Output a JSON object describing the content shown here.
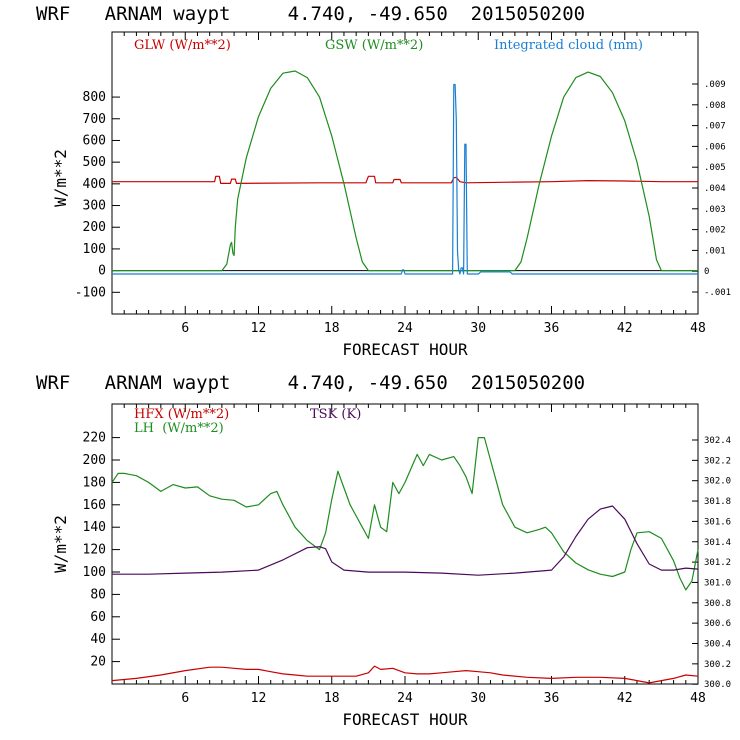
{
  "chart_data": [
    {
      "type": "line",
      "title": "WRF   ARNAM waypt     4.740, -49.650  2015050200",
      "xlabel": "FORECAST HOUR",
      "ylabel": "W/m**2",
      "xlim": [
        0,
        48
      ],
      "ylim": [
        -200,
        1100
      ],
      "x_ticks": [
        6,
        12,
        18,
        24,
        30,
        36,
        42,
        48
      ],
      "y_ticks": [
        -100,
        0,
        100,
        200,
        300,
        400,
        500,
        600,
        700,
        800
      ],
      "y2_ticks": [
        ".009",
        ".008",
        ".007",
        ".006",
        ".005",
        ".004",
        ".003",
        ".002",
        ".001",
        "0",
        "-.001"
      ],
      "series": [
        {
          "name": "GLW (W/m**2)",
          "color": "#c80000",
          "axis": "left",
          "x": [
            0,
            8.4,
            8.5,
            8.8,
            8.9,
            9.7,
            9.8,
            10.1,
            10.2,
            17,
            20.8,
            21,
            21.5,
            21.6,
            23,
            23.1,
            23.6,
            23.7,
            27.8,
            28,
            28.2,
            28.5,
            29,
            33,
            36,
            39,
            42,
            45,
            48
          ],
          "y": [
            410,
            410,
            435,
            435,
            402,
            402,
            422,
            422,
            402,
            405,
            405,
            435,
            435,
            405,
            405,
            420,
            420,
            405,
            405,
            428,
            430,
            410,
            405,
            408,
            410,
            415,
            413,
            410,
            410
          ]
        },
        {
          "name": "GSW (W/m**2)",
          "color": "#1e8c1e",
          "axis": "left",
          "x": [
            0,
            9,
            9.4,
            9.7,
            9.8,
            9.9,
            10,
            10.1,
            10.3,
            11,
            12,
            13,
            14,
            15,
            16,
            17,
            18,
            19,
            20,
            20.5,
            21,
            33,
            33.5,
            34,
            35,
            36,
            37,
            38,
            39,
            40,
            41,
            42,
            43,
            44,
            44.6,
            45,
            48
          ],
          "y": [
            0,
            0,
            30,
            120,
            130,
            80,
            70,
            200,
            330,
            520,
            710,
            840,
            910,
            920,
            890,
            800,
            620,
            400,
            150,
            40,
            0,
            0,
            40,
            150,
            400,
            620,
            800,
            890,
            915,
            895,
            820,
            690,
            500,
            250,
            50,
            0,
            0
          ]
        },
        {
          "name": "Integrated cloud (mm)",
          "color": "#1a7fd4",
          "axis": "right",
          "x": [
            0,
            23.7,
            23.8,
            23.9,
            24,
            27.9,
            28,
            28.1,
            28.2,
            28.3,
            28.4,
            28.5,
            28.6,
            28.7,
            28.8,
            28.9,
            29,
            29.1,
            29.2,
            29.3,
            29.5,
            30,
            30.2,
            32.6,
            32.8,
            48
          ],
          "y": [
            0,
            0,
            0.0002,
            0.0002,
            0,
            0,
            0.0092,
            0.0092,
            0.0075,
            0.0011,
            0.0002,
            0.0,
            0.0003,
            0.0003,
            0,
            0.0063,
            0.0063,
            0,
            0,
            0,
            0,
            0,
            0.0001,
            0.0001,
            0,
            0
          ]
        }
      ]
    },
    {
      "type": "line",
      "title": "WRF   ARNAM waypt     4.740, -49.650  2015050200",
      "xlabel": "FORECAST HOUR",
      "ylabel": "W/m**2",
      "xlim": [
        0,
        48
      ],
      "ylim": [
        0,
        250
      ],
      "x_ticks": [
        6,
        12,
        18,
        24,
        30,
        36,
        42,
        48
      ],
      "y_ticks": [
        20,
        40,
        60,
        80,
        100,
        120,
        140,
        160,
        180,
        200,
        220
      ],
      "y2_ticks": [
        "302.4",
        "302.2",
        "302.0",
        "301.8",
        "301.6",
        "301.4",
        "301.2",
        "301.0",
        "300.8",
        "300.6",
        "300.4",
        "300.2",
        "300.0"
      ],
      "series": [
        {
          "name": "HFX (W/m**2)",
          "color": "#c80000",
          "axis": "left",
          "x": [
            0,
            2,
            4,
            6,
            8,
            9,
            10,
            11,
            12,
            13,
            14,
            15,
            16,
            18,
            20,
            21,
            21.5,
            22,
            23,
            24,
            25,
            26,
            27,
            28,
            29,
            30,
            31,
            32,
            34,
            36,
            38,
            40,
            42,
            43,
            44,
            46,
            47,
            48
          ],
          "y": [
            3,
            5,
            8,
            12,
            15,
            15,
            14,
            13,
            13,
            11,
            9,
            8,
            7,
            7,
            7,
            10,
            16,
            13,
            14,
            10,
            9,
            9,
            10,
            11,
            12,
            11,
            10,
            8,
            6,
            5,
            6,
            6,
            5,
            3,
            1,
            5,
            8,
            7
          ]
        },
        {
          "name": "LH  (W/m**2)",
          "color": "#1e8c1e",
          "axis": "left",
          "x": [
            0,
            0.5,
            1,
            2,
            3,
            4,
            5,
            6,
            7,
            8,
            9,
            10,
            11,
            12,
            13,
            13.5,
            14,
            15,
            16,
            17,
            17.5,
            18,
            18.5,
            19,
            19.5,
            20,
            20.5,
            21,
            21.5,
            22,
            22.5,
            23,
            23.5,
            24,
            25,
            25.5,
            26,
            27,
            28,
            28.5,
            29,
            29.5,
            30,
            30.5,
            31,
            32,
            33,
            34,
            35,
            35.5,
            36,
            37,
            38,
            39,
            40,
            41,
            42,
            42.5,
            43,
            44,
            45,
            46,
            46.5,
            47,
            47.5,
            48
          ],
          "y": [
            180,
            188,
            188,
            186,
            180,
            172,
            178,
            175,
            176,
            168,
            165,
            164,
            158,
            160,
            170,
            172,
            160,
            140,
            128,
            120,
            135,
            165,
            190,
            175,
            160,
            150,
            140,
            130,
            160,
            140,
            136,
            180,
            170,
            180,
            205,
            195,
            205,
            200,
            203,
            195,
            185,
            170,
            220,
            220,
            200,
            160,
            140,
            135,
            138,
            140,
            135,
            118,
            108,
            102,
            98,
            96,
            100,
            120,
            135,
            136,
            130,
            110,
            95,
            84,
            92,
            120
          ]
        },
        {
          "name": "TSK (K)",
          "color": "#4a0a5a",
          "axis": "right",
          "x": [
            0,
            3,
            6,
            9,
            12,
            14,
            16,
            17,
            17.5,
            18,
            19,
            21,
            24,
            27,
            30,
            33,
            36,
            37,
            38,
            39,
            40,
            41,
            42,
            43,
            44,
            45,
            46,
            47,
            48
          ],
          "y": [
            301.08,
            301.08,
            301.09,
            301.1,
            301.12,
            301.22,
            301.34,
            301.35,
            301.33,
            301.2,
            301.12,
            301.1,
            301.1,
            301.09,
            301.07,
            301.09,
            301.12,
            301.25,
            301.45,
            301.62,
            301.72,
            301.75,
            301.62,
            301.38,
            301.18,
            301.12,
            301.12,
            301.14,
            301.13
          ]
        }
      ]
    }
  ],
  "legend": {
    "glw": "GLW (W/m**2)",
    "gsw": "GSW (W/m**2)",
    "cloud": "Integrated cloud (mm)",
    "hfx": "HFX (W/m**2)",
    "lh": "LH  (W/m**2)",
    "tsk": "TSK (K)"
  }
}
